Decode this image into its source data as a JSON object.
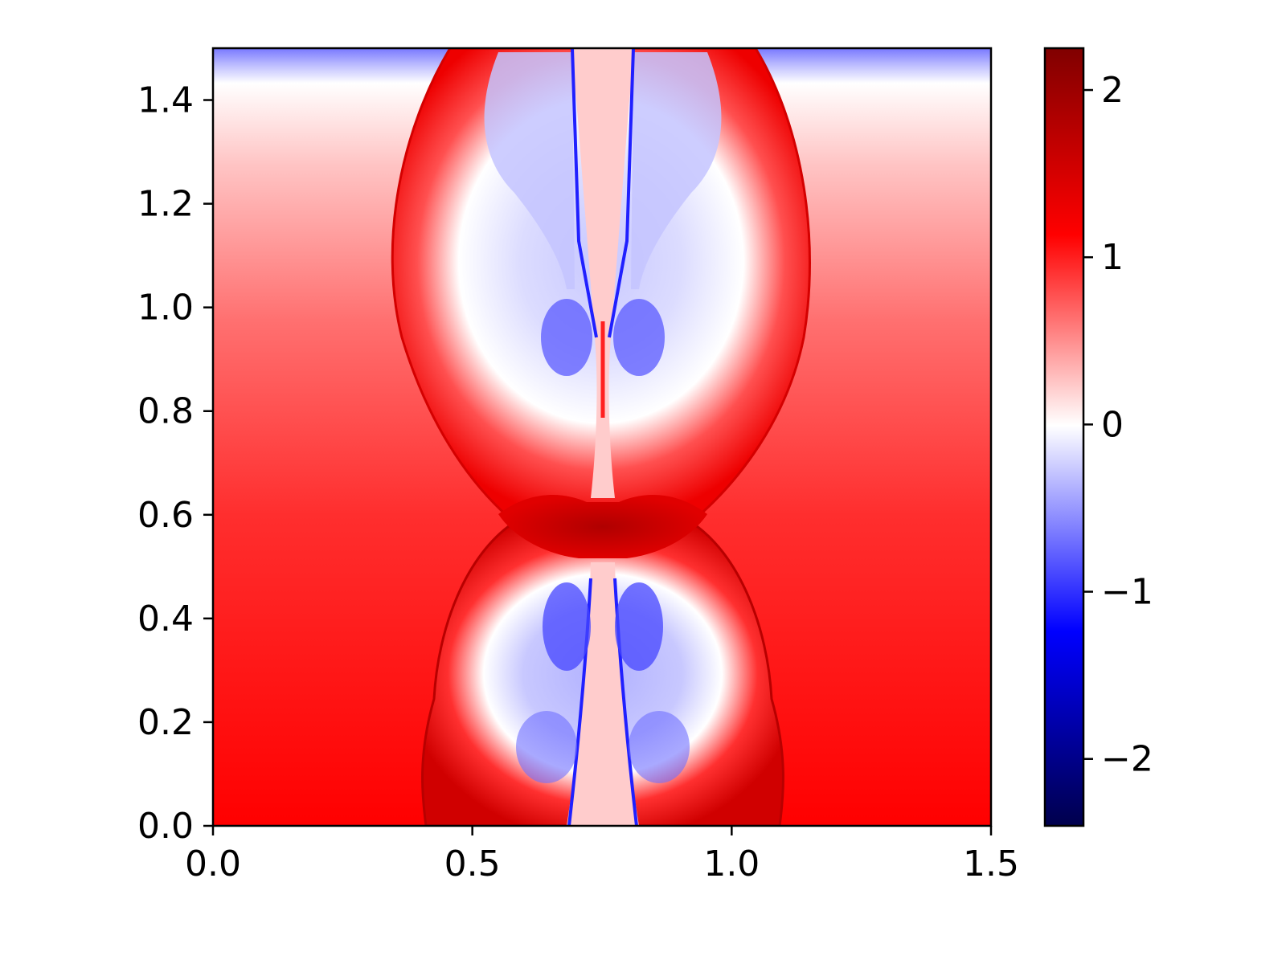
{
  "chart_data": {
    "type": "heatmap",
    "title": "",
    "xlabel": "",
    "ylabel": "",
    "xlim": [
      0.0,
      1.5
    ],
    "ylim": [
      0.0,
      1.5
    ],
    "x_ticks": [
      "0.0",
      "0.5",
      "1.0",
      "1.5"
    ],
    "x_tick_values": [
      0.0,
      0.5,
      1.0,
      1.5
    ],
    "y_ticks": [
      "0.0",
      "0.2",
      "0.4",
      "0.6",
      "0.8",
      "1.0",
      "1.2",
      "1.4"
    ],
    "y_tick_values": [
      0.0,
      0.2,
      0.4,
      0.6,
      0.8,
      1.0,
      1.2,
      1.4
    ],
    "colorbar": {
      "colormap": "seismic",
      "vmin": -2.4,
      "vmax": 2.25,
      "ticks": [
        "−2",
        "−1",
        "0",
        "1",
        "2"
      ],
      "tick_values": [
        -2,
        -1,
        0,
        1,
        2
      ],
      "colors": {
        "low": "#00004c",
        "mid_low": "#0000ff",
        "zero": "#ffffff",
        "mid_high": "#ff0000",
        "high": "#800000"
      }
    },
    "grid": false,
    "field_description": [
      {
        "feature": "background",
        "value_bottom": 1.0,
        "value_top": -0.6,
        "zero_crossing_y": 1.43
      },
      {
        "feature": "upper lobe shell",
        "x_range": [
          0.35,
          1.15
        ],
        "y_range": [
          0.6,
          1.5
        ],
        "value": 1.1
      },
      {
        "feature": "upper lobe interior",
        "value": -0.5
      },
      {
        "feature": "lower lobe shell",
        "x_range": [
          0.4,
          1.1
        ],
        "y_range": [
          0.0,
          0.6
        ],
        "value": 1.5
      },
      {
        "feature": "lower lobe interior",
        "value": -0.6
      },
      {
        "feature": "central jet",
        "x_range": [
          0.69,
          0.8
        ],
        "value": 0.3
      },
      {
        "feature": "interaction knot",
        "x": 0.75,
        "y": 0.56,
        "value": 2.0
      }
    ]
  }
}
